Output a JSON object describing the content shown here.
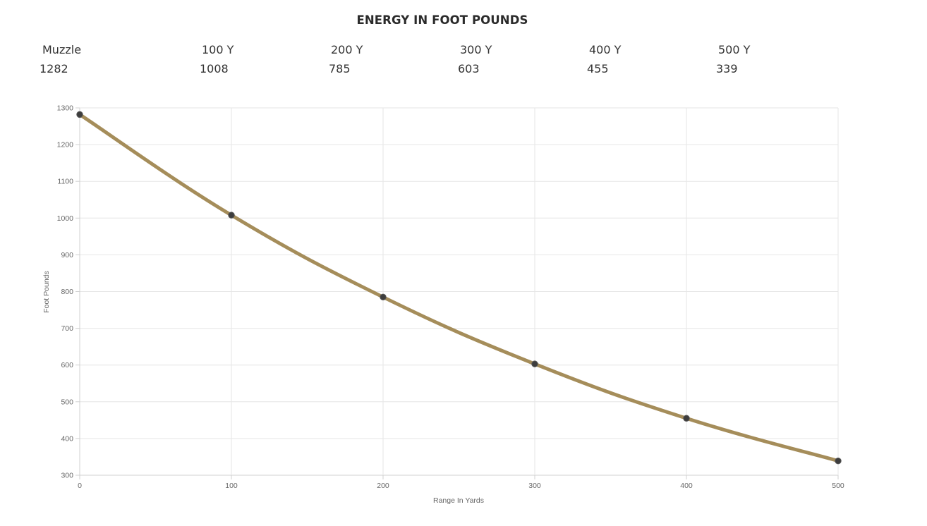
{
  "title": "ENERGY IN FOOT POUNDS",
  "summary": [
    {
      "label": "Muzzle",
      "value": "1282"
    },
    {
      "label": "100 Y",
      "value": "1008"
    },
    {
      "label": "200 Y",
      "value": "785"
    },
    {
      "label": "300 Y",
      "value": "603"
    },
    {
      "label": "400 Y",
      "value": "455"
    },
    {
      "label": "500 Y",
      "value": "339"
    }
  ],
  "chart_data": {
    "type": "line",
    "xlabel": "Range In Yards",
    "ylabel": "Foot Pounds",
    "x": [
      0,
      100,
      200,
      300,
      400,
      500
    ],
    "series": [
      {
        "values": [
          1282,
          1008,
          785,
          603,
          455,
          339
        ]
      }
    ],
    "xlim": [
      0,
      500
    ],
    "ylim": [
      300,
      1300
    ],
    "xticks": [
      0,
      100,
      200,
      300,
      400,
      500
    ],
    "yticks": [
      300,
      400,
      500,
      600,
      700,
      800,
      900,
      1000,
      1100,
      1200,
      1300
    ],
    "grid": true,
    "legend": "none",
    "line_color": "#a58d5a",
    "point_color": "#3d3d3d",
    "grid_color": "#e6e6e6"
  }
}
